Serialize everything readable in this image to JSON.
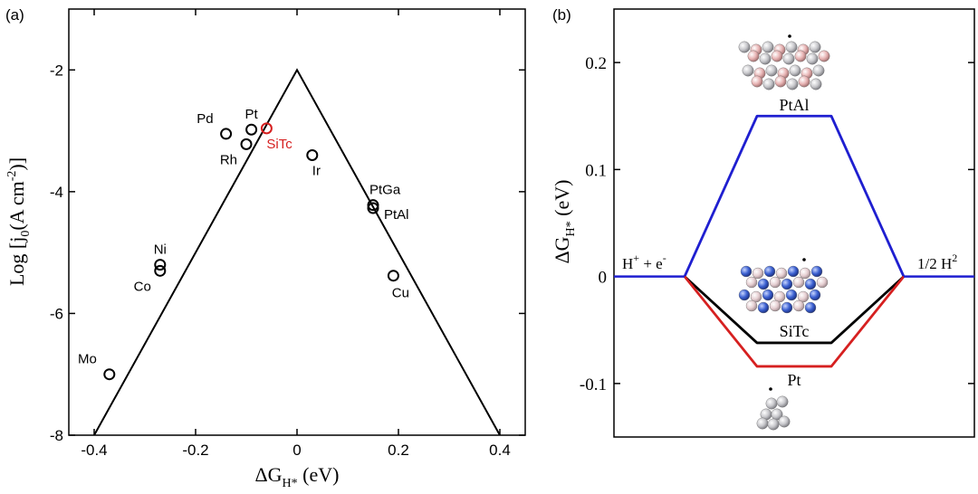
{
  "chart_data": [
    {
      "type": "scatter",
      "panel_label": "(a)",
      "xlabel": "ΔG",
      "xlabel_sub": "H*",
      "xlabel_unit": " (eV)",
      "ylabel": "Log [j",
      "ylabel_sub": "0",
      "ylabel_mid": "(A cm",
      "ylabel_sup": "-2",
      "ylabel_end": ")]",
      "xlim": [
        -0.45,
        0.45
      ],
      "ylim": [
        -8,
        -1
      ],
      "x_ticks": [
        -0.4,
        -0.2,
        0,
        0.2,
        0.4
      ],
      "x_tick_labels": [
        "-0.4",
        "-0.2",
        "0",
        "0.2",
        "0.4"
      ],
      "y_ticks": [
        -8,
        -6,
        -4,
        -2
      ],
      "y_tick_labels": [
        "-8",
        "-6",
        "-4",
        "-2"
      ],
      "volcano_line": {
        "x": [
          -0.4,
          0,
          0.4
        ],
        "y": [
          -8,
          -2,
          -8
        ],
        "color": "#000000"
      },
      "points": [
        {
          "label": "Mo",
          "x": -0.37,
          "y": -7.0,
          "color": "#000000",
          "label_pos": "above-left"
        },
        {
          "label": "Ni",
          "x": -0.27,
          "y": -5.2,
          "color": "#000000",
          "label_pos": "above"
        },
        {
          "label": "Co",
          "x": -0.27,
          "y": -5.3,
          "color": "#000000",
          "label_pos": "below-left"
        },
        {
          "label": "Pd",
          "x": -0.14,
          "y": -3.05,
          "color": "#000000",
          "label_pos": "above-left"
        },
        {
          "label": "Rh",
          "x": -0.1,
          "y": -3.22,
          "color": "#000000",
          "label_pos": "below-left"
        },
        {
          "label": "Pt",
          "x": -0.09,
          "y": -2.98,
          "color": "#000000",
          "label_pos": "above"
        },
        {
          "label": "SiTc",
          "x": -0.06,
          "y": -2.96,
          "color": "#d62020",
          "label_pos": "below-right"
        },
        {
          "label": "Ir",
          "x": 0.03,
          "y": -3.4,
          "color": "#000000",
          "label_pos": "below-right"
        },
        {
          "label": "PtGa",
          "x": 0.15,
          "y": -4.22,
          "color": "#000000",
          "label_pos": "above-right"
        },
        {
          "label": "PtAl",
          "x": 0.15,
          "y": -4.27,
          "color": "#000000",
          "label_pos": "right"
        },
        {
          "label": "Cu",
          "x": 0.19,
          "y": -5.38,
          "color": "#000000",
          "label_pos": "below"
        }
      ]
    },
    {
      "type": "line",
      "panel_label": "(b)",
      "ylabel": "ΔG",
      "ylabel_sub": "H*",
      "ylabel_unit": " (eV)",
      "ylim": [
        -0.15,
        0.25
      ],
      "y_ticks": [
        -0.1,
        0,
        0.1,
        0.2
      ],
      "y_tick_labels": [
        "-0.1",
        "0",
        "0.1",
        "0.2"
      ],
      "x_stages": [
        0,
        1,
        2,
        3
      ],
      "stage_labels": {
        "left": "H",
        "left_sup": "+",
        "left_rest": " + e",
        "left_sup2": "-",
        "right": "1/2 H",
        "right_sup": "2"
      },
      "series": [
        {
          "name": "PtAl",
          "values": [
            0,
            0.15,
            0.15,
            0
          ],
          "color": "#1f1fd0"
        },
        {
          "name": "SiTc",
          "values": [
            0,
            -0.062,
            -0.062,
            0
          ],
          "color": "#000000"
        },
        {
          "name": "Pt",
          "values": [
            0,
            -0.084,
            -0.084,
            0
          ],
          "color": "#d62020"
        }
      ],
      "colors": {
        "baseline": "#1f1fd0",
        "pt_atom": "#c8c8cc",
        "al_atom": "#e8b4b4",
        "si_atom": "#3a5fd0",
        "tc_atom": "#e6cfd2"
      }
    }
  ]
}
